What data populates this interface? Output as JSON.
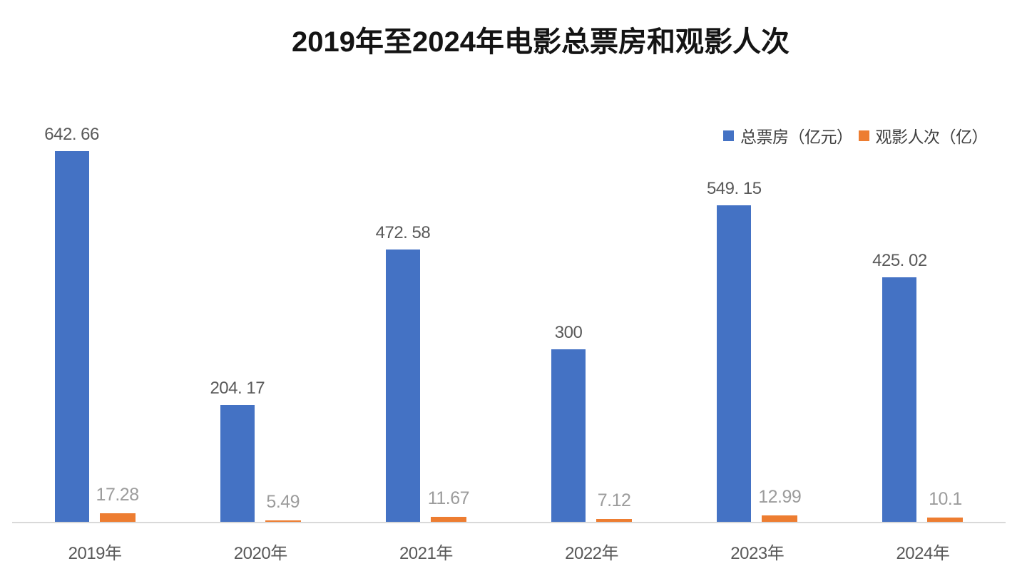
{
  "title": "2019年至2024年电影总票房和观影人次",
  "legend": [
    {
      "label": "总票房（亿元）",
      "color": "#4472C4"
    },
    {
      "label": "观影人次（亿）",
      "color": "#ED7D31"
    }
  ],
  "colors": {
    "box_office_bar": "#4472C4",
    "attendance_bar": "#ED7D31",
    "axis_line": "#D9D9D9",
    "box_office_label": "#595959",
    "attendance_label": "#9C9C9C",
    "category_label": "#595959",
    "title_text": "#141414"
  },
  "chart_data": {
    "type": "bar",
    "title": "2019年至2024年电影总票房和观影人次",
    "categories": [
      "2019年",
      "2020年",
      "2021年",
      "2022年",
      "2023年",
      "2024年"
    ],
    "series": [
      {
        "name": "总票房（亿元）",
        "color": "#4472C4",
        "values": [
          642.66,
          204.17,
          472.58,
          300,
          549.15,
          425.02
        ],
        "data_labels": [
          "642. 66",
          "204. 17",
          "472. 58",
          "300",
          "549. 15",
          "425. 02"
        ]
      },
      {
        "name": "观影人次（亿）",
        "color": "#ED7D31",
        "values": [
          17.28,
          5.49,
          11.67,
          7.12,
          12.99,
          10.1
        ],
        "data_labels": [
          "17.28",
          "5.49",
          "11.67",
          "7.12",
          "12.99",
          "10.1"
        ]
      }
    ],
    "xlabel": "",
    "ylabel": "",
    "ylim": [
      0,
      700
    ],
    "grid": false,
    "y_axis_visible": false,
    "data_labels_visible": true,
    "legend_position": "top-right"
  }
}
